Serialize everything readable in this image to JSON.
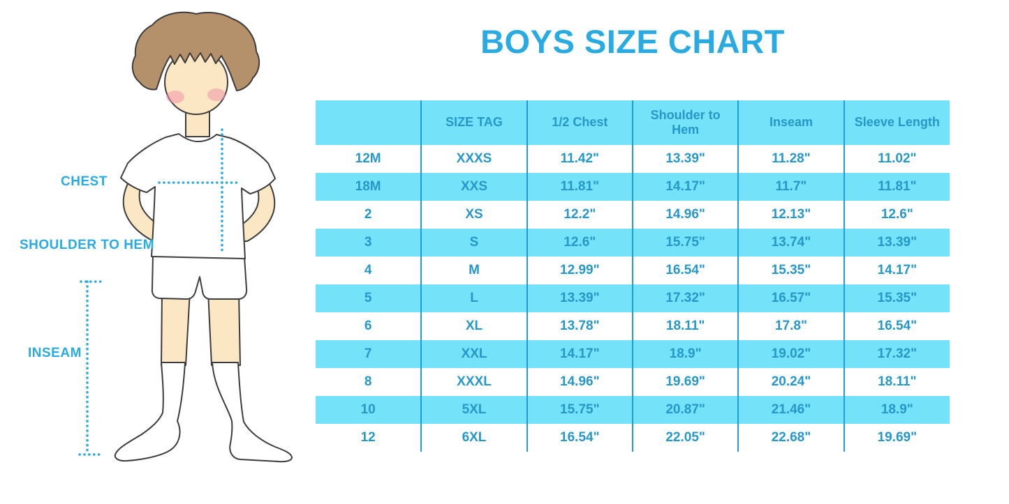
{
  "title": {
    "text": "BOYS SIZE CHART",
    "color": "#29ABE2"
  },
  "figure": {
    "labels": {
      "chest": "CHEST",
      "shoulder_to_hem": "SHOULDER TO HEM",
      "inseam": "INSEAM"
    },
    "colors": {
      "skin": "#FBE7C3",
      "hair": "#B5916B",
      "blush": "#F08EA4",
      "garment": "#FFFFFF",
      "outline": "#3C3C3C",
      "dotted_line": "#29ABE2",
      "label_text": "#29ABE2"
    }
  },
  "chart_data": {
    "type": "table",
    "title": "BOYS SIZE CHART",
    "columns": [
      "",
      "SIZE TAG",
      "1/2 Chest",
      "Shoulder to Hem",
      "Inseam",
      "Sleeve Length"
    ],
    "rows": [
      [
        "12M",
        "XXXS",
        "11.42\"",
        "13.39\"",
        "11.28\"",
        "11.02\""
      ],
      [
        "18M",
        "XXS",
        "11.81\"",
        "14.17\"",
        "11.7\"",
        "11.81\""
      ],
      [
        "2",
        "XS",
        "12.2\"",
        "14.96\"",
        "12.13\"",
        "12.6\""
      ],
      [
        "3",
        "S",
        "12.6\"",
        "15.75\"",
        "13.74\"",
        "13.39\""
      ],
      [
        "4",
        "M",
        "12.99\"",
        "16.54\"",
        "15.35\"",
        "14.17\""
      ],
      [
        "5",
        "L",
        "13.39\"",
        "17.32\"",
        "16.57\"",
        "15.35\""
      ],
      [
        "6",
        "XL",
        "13.78\"",
        "18.11\"",
        "17.8\"",
        "16.54\""
      ],
      [
        "7",
        "XXL",
        "14.17\"",
        "18.9\"",
        "19.02\"",
        "17.32\""
      ],
      [
        "8",
        "XXXL",
        "14.96\"",
        "19.69\"",
        "20.24\"",
        "18.11\""
      ],
      [
        "10",
        "5XL",
        "15.75\"",
        "20.87\"",
        "21.46\"",
        "18.9\""
      ],
      [
        "12",
        "6XL",
        "16.54\"",
        "22.05\"",
        "22.68\"",
        "19.69\""
      ]
    ],
    "style": {
      "band_color": "#74E2F8",
      "text_color": "#2598C9",
      "separator_color": "#1F9CD2",
      "zebra": "header cyan, then alternating white/cyan data rows",
      "grid": "vertical separators only, no outer border",
      "legend_position": "none"
    }
  }
}
